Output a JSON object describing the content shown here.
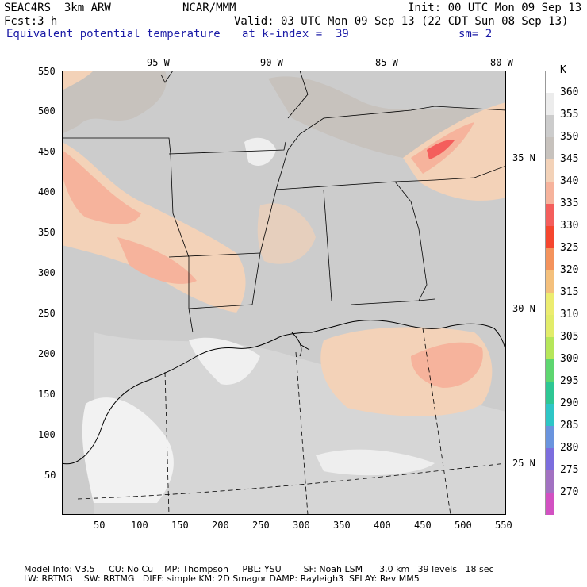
{
  "header": {
    "model": "SEAC4RS  3km ARW",
    "org": "NCAR/MMM",
    "init": "Init: 00 UTC Mon 09 Sep 13",
    "fcst_label": "Fcst:",
    "fcst_value": "3 h",
    "valid": "Valid: 03 UTC Mon 09 Sep 13 (22 CDT Sun 08 Sep 13)",
    "field": "Equivalent potential temperature",
    "level": "at k-index =  39",
    "smoothing": "sm= 2"
  },
  "axes": {
    "left_ticks": [
      "550",
      "500",
      "450",
      "400",
      "350",
      "300",
      "250",
      "200",
      "150",
      "100",
      "50"
    ],
    "bottom_ticks": [
      "50",
      "100",
      "150",
      "200",
      "250",
      "300",
      "350",
      "400",
      "450",
      "500",
      "550"
    ],
    "top_lon": [
      "95 W",
      "90 W",
      "85 W",
      "80 W"
    ],
    "right_lat": [
      "35 N",
      "30 N",
      "25 N"
    ]
  },
  "colorbar": {
    "unit": "K",
    "labels": [
      "360",
      "355",
      "350",
      "345",
      "340",
      "335",
      "330",
      "325",
      "320",
      "315",
      "310",
      "305",
      "300",
      "295",
      "290",
      "285",
      "280",
      "275",
      "270"
    ],
    "colors": [
      "#ffffff",
      "#ececec",
      "#cccccc",
      "#c7c2bd",
      "#f3d2b8",
      "#f6b39c",
      "#f45e5c",
      "#f5462e",
      "#f4935c",
      "#f4c07c",
      "#ecec70",
      "#e2ec6a",
      "#b6e65a",
      "#5ed670",
      "#2ec794",
      "#2ec6c6",
      "#6a94de",
      "#7c6ede",
      "#a272c2",
      "#d251c2"
    ]
  },
  "footer": {
    "line1": "Model Info: V3.5     CU: No Cu    MP: Thompson     PBL: YSU        SF: Noah LSM      3.0 km   39 levels   18 sec",
    "line2": "LW: RRTMG    SW: RRTMG   DIFF: simple KM: 2D Smagor DAMP: Rayleigh3  SFLAY: Rev MM5"
  }
}
